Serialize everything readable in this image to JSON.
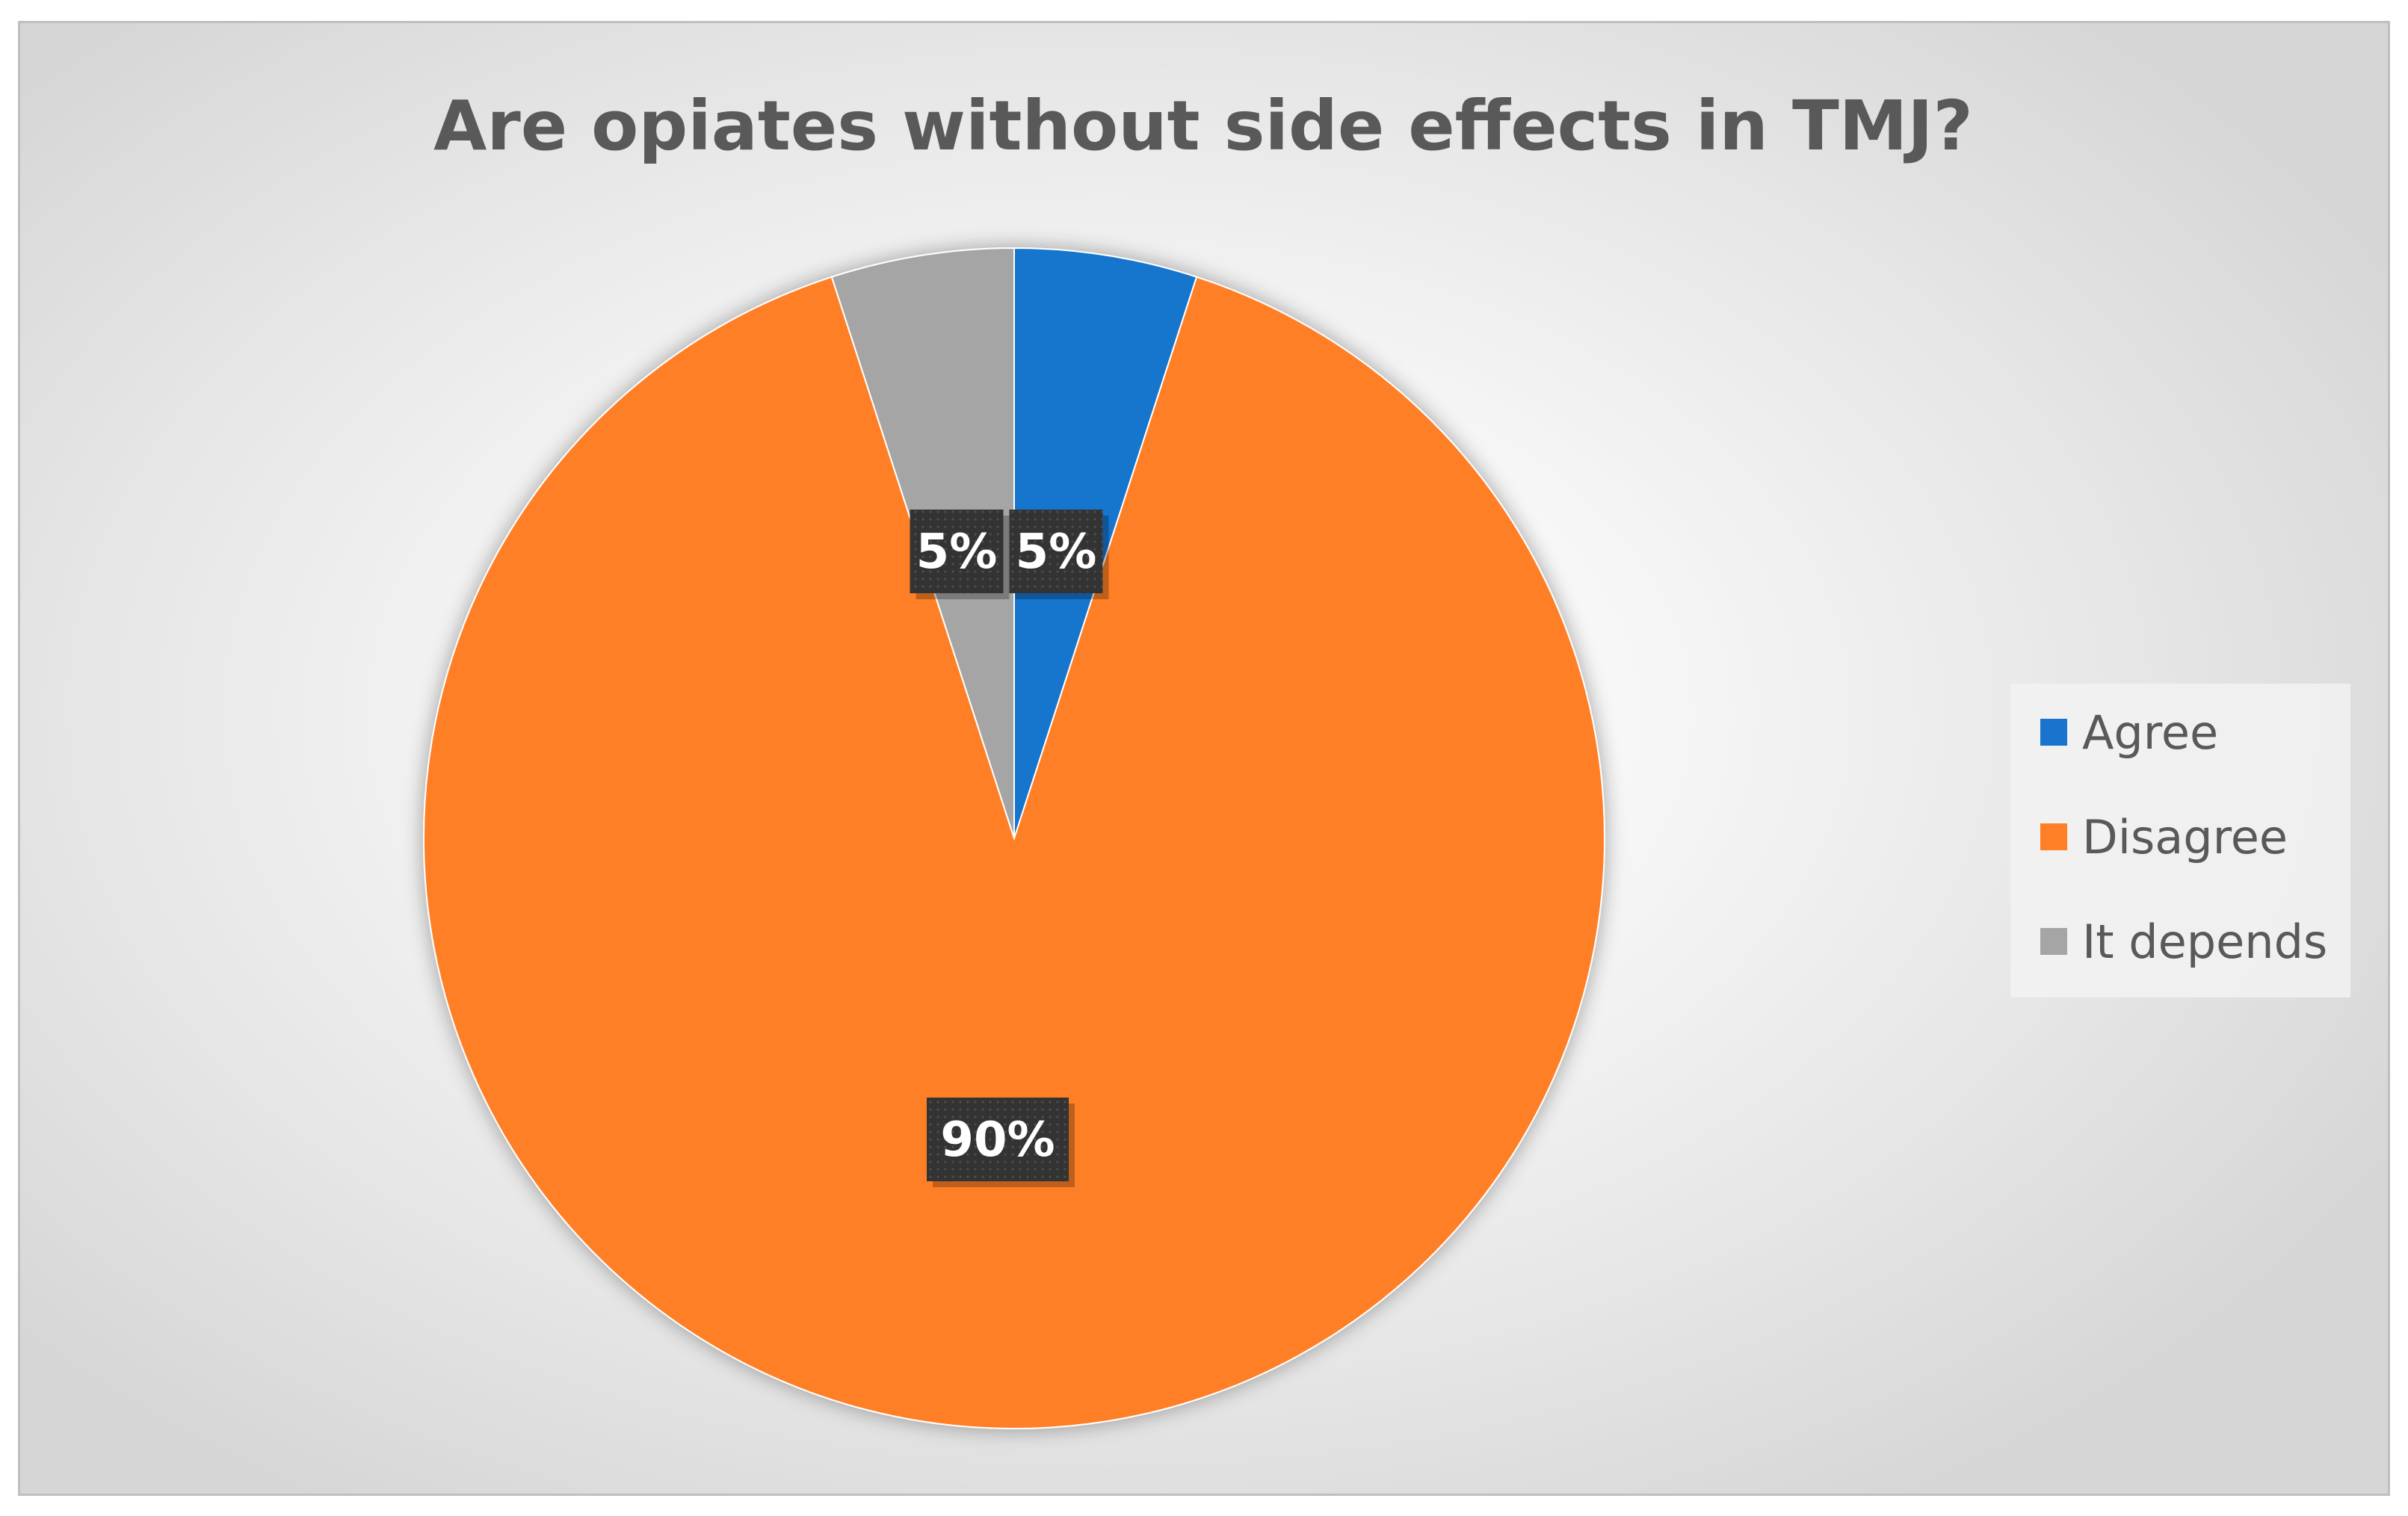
{
  "chart_data": {
    "type": "pie",
    "title": "Are opiates without side effects in TMJ?",
    "categories": [
      "Agree",
      "Disagree",
      "It depends"
    ],
    "values": [
      5,
      90,
      5
    ],
    "data_labels": [
      "5%",
      "90%",
      "5%"
    ],
    "colors": [
      "#1874CD",
      "#FF7F27",
      "#A5A5A5"
    ],
    "legend": {
      "position": "right",
      "entries": [
        "Agree",
        "Disagree",
        "It depends"
      ]
    },
    "start_angle": "top (12 o'clock), clockwise"
  }
}
